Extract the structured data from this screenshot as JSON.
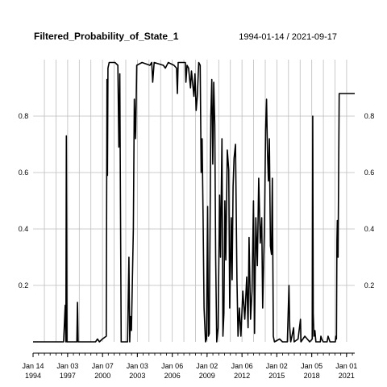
{
  "chart_data": {
    "type": "line",
    "title": "Filtered_Probability_of_State_1",
    "date_range": "1994-01-14 / 2021-09-17",
    "xlim": [
      "1994-01-14",
      "2021-09-17"
    ],
    "ylim": [
      0,
      1
    ],
    "y_ticks": [
      {
        "value": 0.2,
        "label": "0.2"
      },
      {
        "value": 0.4,
        "label": "0.4"
      },
      {
        "value": 0.6,
        "label": "0.6"
      },
      {
        "value": 0.8,
        "label": "0.8"
      }
    ],
    "x_ticks": [
      {
        "date": "1994-01-14",
        "month": "Jan 14",
        "year": "1994"
      },
      {
        "date": "1997-01-03",
        "month": "Jan 03",
        "year": "1997"
      },
      {
        "date": "2000-01-07",
        "month": "Jan 07",
        "year": "2000"
      },
      {
        "date": "2003-01-03",
        "month": "Jan 03",
        "year": "2003"
      },
      {
        "date": "2006-01-06",
        "month": "Jan 06",
        "year": "2006"
      },
      {
        "date": "2009-01-02",
        "month": "Jan 02",
        "year": "2009"
      },
      {
        "date": "2012-01-06",
        "month": "Jan 06",
        "year": "2012"
      },
      {
        "date": "2015-01-02",
        "month": "Jan 02",
        "year": "2015"
      },
      {
        "date": "2018-01-05",
        "month": "Jan 05",
        "year": "2018"
      },
      {
        "date": "2021-01-01",
        "month": "Jan 01",
        "year": "2021"
      }
    ],
    "grid": true,
    "series": [
      {
        "color": "#000000",
        "points": [
          [
            "1994-01-14",
            0.0
          ],
          [
            "1996-09-01",
            0.0
          ],
          [
            "1996-10-20",
            0.13
          ],
          [
            "1996-11-10",
            0.0
          ],
          [
            "1996-11-24",
            0.73
          ],
          [
            "1996-12-15",
            0.0
          ],
          [
            "1997-10-20",
            0.0
          ],
          [
            "1997-11-10",
            0.14
          ],
          [
            "1997-12-01",
            0.0
          ],
          [
            "1999-06-01",
            0.0
          ],
          [
            "1999-08-01",
            0.01
          ],
          [
            "1999-10-01",
            0.0
          ],
          [
            "2000-01-01",
            0.01
          ],
          [
            "2000-05-01",
            0.02
          ],
          [
            "2000-05-25",
            0.93
          ],
          [
            "2000-06-10",
            0.59
          ],
          [
            "2000-06-25",
            0.97
          ],
          [
            "2000-08-01",
            0.99
          ],
          [
            "2001-02-01",
            0.99
          ],
          [
            "2001-05-01",
            0.98
          ],
          [
            "2001-06-01",
            0.69
          ],
          [
            "2001-07-01",
            0.95
          ],
          [
            "2001-08-15",
            0.0
          ],
          [
            "2002-03-01",
            0.0
          ],
          [
            "2002-04-15",
            0.3
          ],
          [
            "2002-05-10",
            0.0
          ],
          [
            "2002-06-01",
            0.09
          ],
          [
            "2002-07-01",
            0.04
          ],
          [
            "2002-09-01",
            0.4
          ],
          [
            "2002-10-01",
            0.86
          ],
          [
            "2002-11-10",
            0.72
          ],
          [
            "2002-12-15",
            0.98
          ],
          [
            "2003-06-01",
            0.99
          ],
          [
            "2004-02-01",
            0.98
          ],
          [
            "2004-04-01",
            0.99
          ],
          [
            "2004-05-01",
            0.92
          ],
          [
            "2004-06-15",
            0.99
          ],
          [
            "2005-04-01",
            0.98
          ],
          [
            "2005-06-01",
            0.97
          ],
          [
            "2005-09-01",
            0.99
          ],
          [
            "2006-03-01",
            0.98
          ],
          [
            "2006-05-20",
            0.97
          ],
          [
            "2006-06-15",
            0.88
          ],
          [
            "2006-07-10",
            0.99
          ],
          [
            "2007-02-20",
            0.99
          ],
          [
            "2007-03-10",
            0.92
          ],
          [
            "2007-04-15",
            0.98
          ],
          [
            "2007-06-01",
            0.97
          ],
          [
            "2007-08-01",
            0.9
          ],
          [
            "2007-09-01",
            0.96
          ],
          [
            "2007-11-15",
            0.87
          ],
          [
            "2007-12-20",
            0.95
          ],
          [
            "2008-01-25",
            0.82
          ],
          [
            "2008-03-01",
            0.87
          ],
          [
            "2008-04-15",
            0.99
          ],
          [
            "2008-06-01",
            0.98
          ],
          [
            "2008-07-01",
            0.6
          ],
          [
            "2008-08-01",
            0.72
          ],
          [
            "2008-09-01",
            0.44
          ],
          [
            "2008-10-01",
            0.12
          ],
          [
            "2008-11-15",
            0.0
          ],
          [
            "2008-12-15",
            0.01
          ],
          [
            "2009-01-20",
            0.48
          ],
          [
            "2009-02-15",
            0.02
          ],
          [
            "2009-03-15",
            0.03
          ],
          [
            "2009-05-01",
            0.8
          ],
          [
            "2009-06-01",
            0.93
          ],
          [
            "2009-07-01",
            0.63
          ],
          [
            "2009-08-01",
            0.92
          ],
          [
            "2009-09-01",
            0.77
          ],
          [
            "2009-10-01",
            0.3
          ],
          [
            "2009-11-01",
            0.0
          ],
          [
            "2009-12-15",
            0.05
          ],
          [
            "2010-02-01",
            0.52
          ],
          [
            "2010-03-01",
            0.3
          ],
          [
            "2010-04-15",
            0.72
          ],
          [
            "2010-05-15",
            0.02
          ],
          [
            "2010-06-15",
            0.1
          ],
          [
            "2010-07-15",
            0.5
          ],
          [
            "2010-08-15",
            0.29
          ],
          [
            "2010-10-01",
            0.68
          ],
          [
            "2010-11-15",
            0.61
          ],
          [
            "2010-12-15",
            0.12
          ],
          [
            "2011-02-01",
            0.44
          ],
          [
            "2011-03-01",
            0.22
          ],
          [
            "2011-04-01",
            0.55
          ],
          [
            "2011-05-01",
            0.65
          ],
          [
            "2011-06-15",
            0.7
          ],
          [
            "2011-08-01",
            0.22
          ],
          [
            "2011-09-01",
            0.02
          ],
          [
            "2011-10-15",
            0.12
          ],
          [
            "2011-12-01",
            0.02
          ],
          [
            "2012-02-01",
            0.18
          ],
          [
            "2012-04-01",
            0.08
          ],
          [
            "2012-06-01",
            0.23
          ],
          [
            "2012-07-15",
            0.05
          ],
          [
            "2012-08-15",
            0.37
          ],
          [
            "2012-10-01",
            0.08
          ],
          [
            "2012-11-15",
            0.18
          ],
          [
            "2013-01-01",
            0.5
          ],
          [
            "2013-02-01",
            0.03
          ],
          [
            "2013-03-15",
            0.44
          ],
          [
            "2013-05-01",
            0.27
          ],
          [
            "2013-06-15",
            0.58
          ],
          [
            "2013-08-01",
            0.35
          ],
          [
            "2013-09-15",
            0.44
          ],
          [
            "2013-10-15",
            0.12
          ],
          [
            "2013-12-15",
            0.44
          ],
          [
            "2014-01-15",
            0.75
          ],
          [
            "2014-02-15",
            0.86
          ],
          [
            "2014-03-15",
            0.68
          ],
          [
            "2014-04-15",
            0.57
          ],
          [
            "2014-05-15",
            0.72
          ],
          [
            "2014-06-15",
            0.34
          ],
          [
            "2014-07-20",
            0.31
          ],
          [
            "2014-08-15",
            0.58
          ],
          [
            "2014-09-15",
            0.02
          ],
          [
            "2014-10-20",
            0.0
          ],
          [
            "2015-04-01",
            0.01
          ],
          [
            "2015-07-01",
            0.0
          ],
          [
            "2015-12-01",
            0.0
          ],
          [
            "2016-01-20",
            0.2
          ],
          [
            "2016-02-15",
            0.05
          ],
          [
            "2016-03-15",
            0.0
          ],
          [
            "2016-06-15",
            0.05
          ],
          [
            "2016-07-01",
            0.0
          ],
          [
            "2016-11-01",
            0.01
          ],
          [
            "2017-01-15",
            0.08
          ],
          [
            "2017-02-01",
            0.0
          ],
          [
            "2017-06-01",
            0.02
          ],
          [
            "2017-11-01",
            0.0
          ],
          [
            "2018-01-20",
            0.01
          ],
          [
            "2018-02-05",
            0.8
          ],
          [
            "2018-02-20",
            0.1
          ],
          [
            "2018-03-15",
            0.02
          ],
          [
            "2018-04-15",
            0.04
          ],
          [
            "2018-05-15",
            0.0
          ],
          [
            "2018-10-01",
            0.0
          ],
          [
            "2018-10-20",
            0.02
          ],
          [
            "2018-11-15",
            0.01
          ],
          [
            "2019-01-01",
            0.0
          ],
          [
            "2019-05-01",
            0.0
          ],
          [
            "2019-06-01",
            0.02
          ],
          [
            "2019-08-01",
            0.0
          ],
          [
            "2020-01-15",
            0.0
          ],
          [
            "2020-02-01",
            0.02
          ],
          [
            "2020-02-21",
            0.01
          ],
          [
            "2020-03-06",
            0.36
          ],
          [
            "2020-03-20",
            0.43
          ],
          [
            "2020-04-10",
            0.3
          ],
          [
            "2020-05-15",
            0.88
          ],
          [
            "2021-09-17",
            0.88
          ]
        ]
      }
    ]
  }
}
